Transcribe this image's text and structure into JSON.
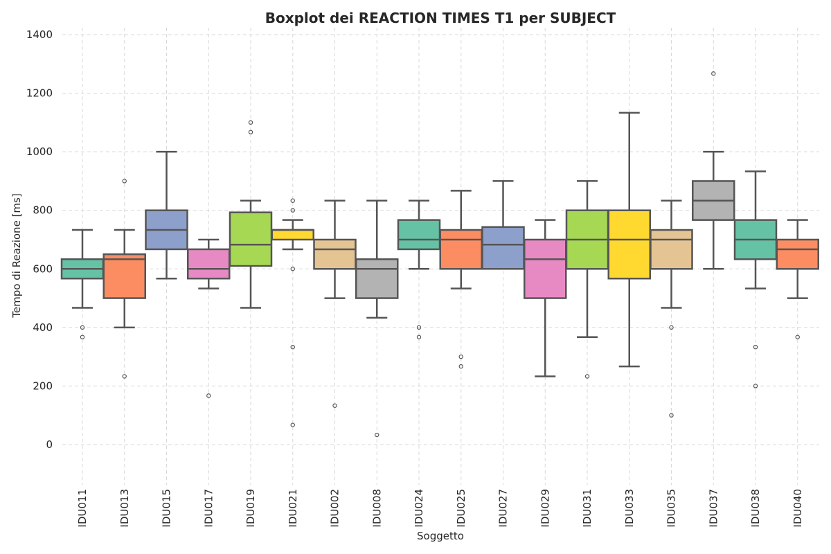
{
  "chart_data": {
    "type": "boxplot",
    "title": "Boxplot dei REACTION TIMES T1 per SUBJECT",
    "xlabel": "Soggetto",
    "ylabel": "Tempo di Reazione [ms]",
    "ylim": [
      -130,
      1420
    ],
    "yticks": [
      0,
      200,
      400,
      600,
      800,
      1000,
      1200,
      1400
    ],
    "grid": true,
    "categories": [
      "IDU011",
      "IDU013",
      "IDU015",
      "IDU017",
      "IDU019",
      "IDU021",
      "IDU002",
      "IDU008",
      "IDU024",
      "IDU025",
      "IDU027",
      "IDU029",
      "IDU031",
      "IDU033",
      "IDU035",
      "IDU037",
      "IDU038",
      "IDU040"
    ],
    "colors": [
      "#66c2a5",
      "#fc8d62",
      "#8da0cb",
      "#e78ac3",
      "#a6d854",
      "#ffd92f",
      "#e5c494",
      "#b3b3b3",
      "#66c2a5",
      "#fc8d62",
      "#8da0cb",
      "#e78ac3",
      "#a6d854",
      "#ffd92f",
      "#e5c494",
      "#b3b3b3",
      "#66c2a5",
      "#fc8d62"
    ],
    "boxes": [
      {
        "whislo": 467,
        "q1": 567,
        "med": 600,
        "q3": 633,
        "whishi": 733,
        "fliers": [
          400,
          367
        ]
      },
      {
        "whislo": 400,
        "q1": 500,
        "med": 633,
        "q3": 650,
        "whishi": 733,
        "fliers": [
          900,
          233
        ]
      },
      {
        "whislo": 567,
        "q1": 667,
        "med": 733,
        "q3": 800,
        "whishi": 1000,
        "fliers": []
      },
      {
        "whislo": 533,
        "q1": 567,
        "med": 600,
        "q3": 667,
        "whishi": 700,
        "fliers": [
          167
        ]
      },
      {
        "whislo": 467,
        "q1": 610,
        "med": 683,
        "q3": 793,
        "whishi": 833,
        "fliers": [
          1100,
          1067
        ]
      },
      {
        "whislo": 667,
        "q1": 700,
        "med": 733,
        "q3": 733,
        "whishi": 767,
        "fliers": [
          833,
          800,
          600,
          333,
          67
        ]
      },
      {
        "whislo": 500,
        "q1": 600,
        "med": 667,
        "q3": 700,
        "whishi": 833,
        "fliers": [
          133
        ]
      },
      {
        "whislo": 433,
        "q1": 500,
        "med": 600,
        "q3": 633,
        "whishi": 833,
        "fliers": [
          33
        ]
      },
      {
        "whislo": 600,
        "q1": 667,
        "med": 700,
        "q3": 767,
        "whishi": 833,
        "fliers": [
          400,
          367
        ]
      },
      {
        "whislo": 533,
        "q1": 600,
        "med": 700,
        "q3": 733,
        "whishi": 867,
        "fliers": [
          300,
          267
        ]
      },
      {
        "whislo": 600,
        "q1": 600,
        "med": 683,
        "q3": 743,
        "whishi": 900,
        "fliers": []
      },
      {
        "whislo": 233,
        "q1": 500,
        "med": 633,
        "q3": 700,
        "whishi": 767,
        "fliers": []
      },
      {
        "whislo": 367,
        "q1": 600,
        "med": 700,
        "q3": 800,
        "whishi": 900,
        "fliers": [
          233
        ]
      },
      {
        "whislo": 267,
        "q1": 567,
        "med": 700,
        "q3": 800,
        "whishi": 1133,
        "fliers": []
      },
      {
        "whislo": 467,
        "q1": 600,
        "med": 700,
        "q3": 733,
        "whishi": 833,
        "fliers": [
          400,
          100
        ]
      },
      {
        "whislo": 600,
        "q1": 767,
        "med": 833,
        "q3": 900,
        "whishi": 1000,
        "fliers": [
          1267
        ]
      },
      {
        "whislo": 533,
        "q1": 633,
        "med": 700,
        "q3": 767,
        "whishi": 933,
        "fliers": [
          333,
          200
        ]
      },
      {
        "whislo": 500,
        "q1": 600,
        "med": 667,
        "q3": 700,
        "whishi": 767,
        "fliers": [
          367
        ]
      }
    ]
  }
}
